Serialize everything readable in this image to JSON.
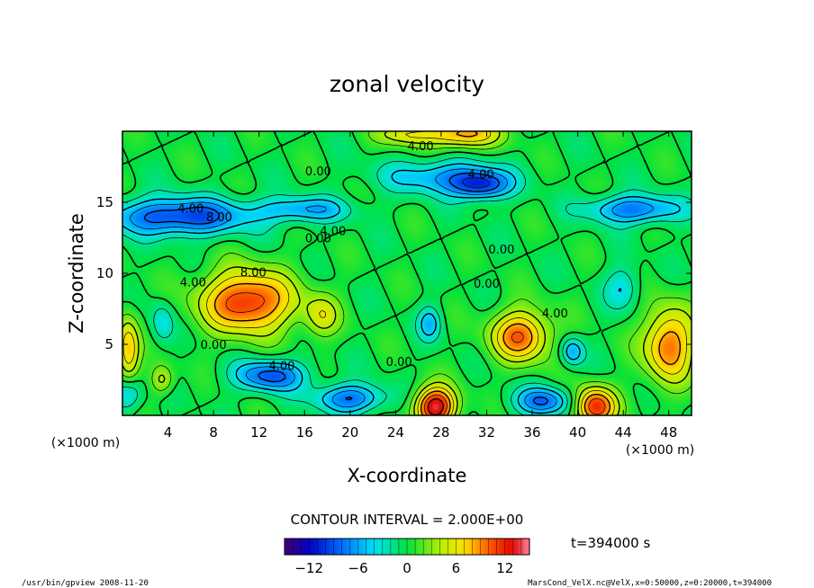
{
  "chart_data": {
    "type": "heatmap",
    "title": "zonal velocity",
    "xlabel": "X-coordinate",
    "ylabel": "Z-coordinate",
    "x_unit": "(×1000 m)",
    "x_unit_right": "(×1000 m)",
    "xlim": [
      0,
      50
    ],
    "ylim": [
      0,
      20
    ],
    "x_ticks": [
      4,
      8,
      12,
      16,
      20,
      24,
      28,
      32,
      36,
      40,
      44,
      48
    ],
    "y_ticks": [
      5,
      10,
      15
    ],
    "contour_interval_text": "CONTOUR INTERVAL = 2.000E+00",
    "time_text": "t=394000 s",
    "colorbar": {
      "min": -15,
      "max": 15,
      "ticks": [
        -12,
        -6,
        0,
        6,
        12
      ]
    },
    "contour_labels": [
      {
        "text": "4.00",
        "x": 26.2,
        "z": 19.0
      },
      {
        "text": "0.00",
        "x": 17.2,
        "z": 17.2
      },
      {
        "text": "4.00",
        "x": 31.5,
        "z": 17.0
      },
      {
        "text": "4.00",
        "x": 6.0,
        "z": 14.6
      },
      {
        "text": "8.00",
        "x": 8.5,
        "z": 14.0
      },
      {
        "text": "0.00",
        "x": 17.2,
        "z": 12.5
      },
      {
        "text": "4.00",
        "x": 18.5,
        "z": 13.0
      },
      {
        "text": "0.00",
        "x": 33.3,
        "z": 11.7
      },
      {
        "text": "4.00",
        "x": 6.2,
        "z": 9.4
      },
      {
        "text": "8.00",
        "x": 11.5,
        "z": 10.1
      },
      {
        "text": "0.00",
        "x": 32.0,
        "z": 9.3
      },
      {
        "text": "4.00",
        "x": 38.0,
        "z": 7.2
      },
      {
        "text": "0.00",
        "x": 8.0,
        "z": 5.0
      },
      {
        "text": "4.00",
        "x": 14.0,
        "z": 3.5
      },
      {
        "text": "0.00",
        "x": 24.3,
        "z": 3.8
      }
    ],
    "anomalies": [
      {
        "x": 11,
        "z": 8,
        "amp": 12,
        "sx": 4.0,
        "sz": 2.2
      },
      {
        "x": 17.5,
        "z": 7,
        "amp": 5,
        "sx": 1.5,
        "sz": 1.5
      },
      {
        "x": 35,
        "z": 5.6,
        "amp": 10,
        "sx": 2.6,
        "sz": 1.8
      },
      {
        "x": 48,
        "z": 5,
        "amp": 10,
        "sx": 2.2,
        "sz": 2.6
      },
      {
        "x": 27.5,
        "z": 0.6,
        "amp": 14,
        "sx": 1.8,
        "sz": 1.4
      },
      {
        "x": 41.5,
        "z": 0.6,
        "amp": 12,
        "sx": 1.8,
        "sz": 1.4
      },
      {
        "x": 30,
        "z": 19.8,
        "amp": 9,
        "sx": 3.0,
        "sz": 1.0
      },
      {
        "x": 25,
        "z": 19.8,
        "amp": 6,
        "sx": 2.5,
        "sz": 0.8
      },
      {
        "x": 0.5,
        "z": 4.5,
        "amp": 8,
        "sx": 1.0,
        "sz": 2.5
      },
      {
        "x": 3.5,
        "z": 2.5,
        "amp": 5,
        "sx": 1.0,
        "sz": 1.0
      },
      {
        "x": 28,
        "z": 16.8,
        "amp": -6,
        "sx": 5.0,
        "sz": 1.2
      },
      {
        "x": 31.5,
        "z": 16.2,
        "amp": -9,
        "sx": 2.5,
        "sz": 1.0
      },
      {
        "x": 5,
        "z": 14,
        "amp": -10,
        "sx": 6.0,
        "sz": 1.3
      },
      {
        "x": 16,
        "z": 14.5,
        "amp": -6,
        "sx": 4.0,
        "sz": 0.9
      },
      {
        "x": 45,
        "z": 14.5,
        "amp": -8,
        "sx": 4.0,
        "sz": 1.0
      },
      {
        "x": 13,
        "z": 2.8,
        "amp": -9,
        "sx": 3.0,
        "sz": 1.1
      },
      {
        "x": 20,
        "z": 1.2,
        "amp": -8,
        "sx": 3.0,
        "sz": 1.0
      },
      {
        "x": 37,
        "z": 1.0,
        "amp": -8,
        "sx": 2.5,
        "sz": 1.0
      },
      {
        "x": 39.5,
        "z": 4.5,
        "amp": -6,
        "sx": 1.0,
        "sz": 1.0
      },
      {
        "x": 27,
        "z": 6.5,
        "amp": -5,
        "sx": 1.0,
        "sz": 1.2
      },
      {
        "x": 3.5,
        "z": 6.5,
        "amp": -4,
        "sx": 1.0,
        "sz": 1.5
      },
      {
        "x": 0.5,
        "z": 1.5,
        "amp": -6,
        "sx": 1.2,
        "sz": 1.2
      },
      {
        "x": 44,
        "z": 9,
        "amp": -4,
        "sx": 1.5,
        "sz": 1.5
      }
    ]
  },
  "footer": {
    "left_text": "/usr/bin/gpview  2008-11-20",
    "right_text": "MarsCond_VelX.nc@VelX,x=0:50000,z=0:20000,t=394000"
  }
}
